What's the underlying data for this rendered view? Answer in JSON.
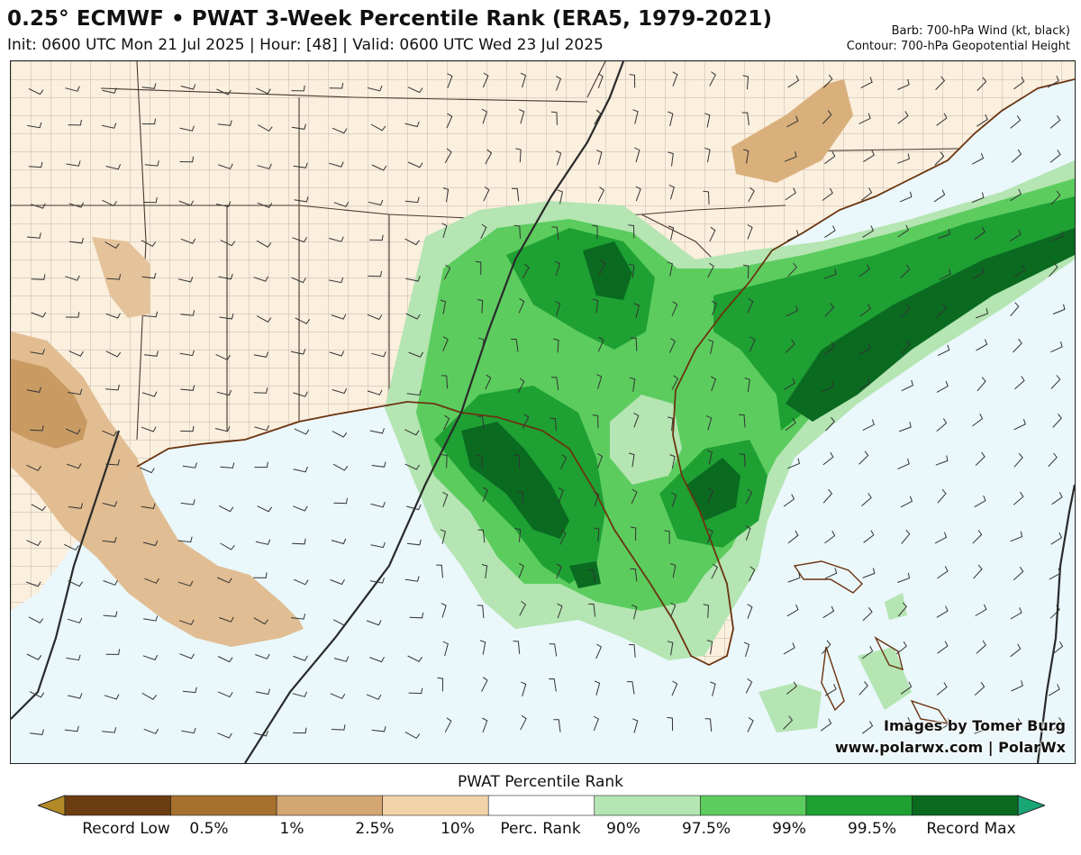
{
  "header": {
    "title": "0.25° ECMWF • PWAT 3-Week Percentile Rank (ERA5, 1979-2021)",
    "subtitle": "Init: 0600 UTC Mon 21 Jul 2025 | Hour: [48] | Valid: 0600 UTC Wed 23 Jul 2025",
    "barb_note": "Barb: 700-hPa Wind (kt, black)",
    "contour_note": "Contour: 700-hPa Geopotential Height"
  },
  "credits": {
    "line1": "Images by Tomer Burg",
    "line2": "www.polarwx.com | PolarWx"
  },
  "legend": {
    "title": "PWAT Percentile Rank",
    "labels": [
      "Record Low",
      "0.5%",
      "1%",
      "2.5%",
      "10%",
      "Perc. Rank",
      "90%",
      "97.5%",
      "99%",
      "99.5%",
      "Record Max"
    ],
    "colors": [
      "#b38a25",
      "#6b3d10",
      "#a5712d",
      "#d3a672",
      "#f1d3a8",
      "#ffffff",
      "#b4e5b2",
      "#5ccc5e",
      "#1ea033",
      "#0a6a20",
      "#18a674"
    ]
  },
  "map": {
    "land_color": "#fbefde",
    "ocean_color": "#eaf7fb",
    "coast_color": "#6b3410",
    "county_color": "#8a7f78",
    "state_color": "#4a3a30",
    "contour_color": "#2a2a2a"
  }
}
